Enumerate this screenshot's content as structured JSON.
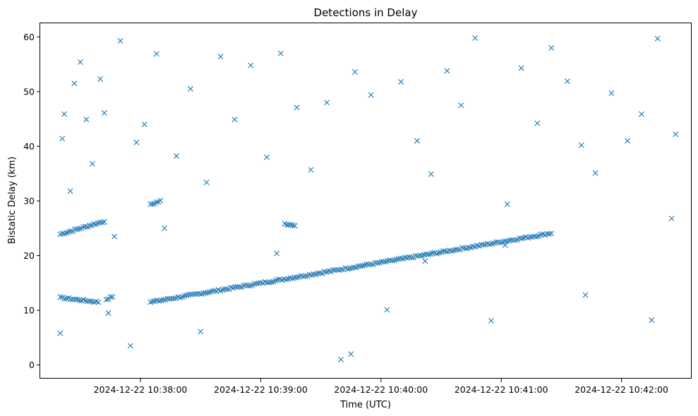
{
  "chart_data": {
    "type": "scatter",
    "title": "Detections in Delay",
    "xlabel": "Time (UTC)",
    "ylabel": "Bistatic Delay (km)",
    "x_tick_labels": [
      "2024-12-22 10:38:00",
      "2024-12-22 10:39:00",
      "2024-12-22 10:40:00",
      "2024-12-22 10:41:00",
      "2024-12-22 10:42:00"
    ],
    "y_tick_labels": [
      "0",
      "10",
      "20",
      "30",
      "40",
      "50",
      "60"
    ],
    "xlim": [
      "2024-12-22 10:37:10",
      "2024-12-22 10:42:35"
    ],
    "ylim": [
      -2.5,
      62.5
    ],
    "grid": false,
    "marker": "x",
    "color": "#1f77b4",
    "tracks": [
      {
        "t_start": "2024-12-22 10:37:20",
        "t_end": "2024-12-22 10:37:42",
        "delay_start": 23.9,
        "delay_end": 26.3
      },
      {
        "t_start": "2024-12-22 10:37:20",
        "t_end": "2024-12-22 10:37:39",
        "delay_start": 12.3,
        "delay_end": 11.5
      },
      {
        "t_start": "2024-12-22 10:37:43",
        "t_end": "2024-12-22 10:37:46",
        "delay_start": 12.0,
        "delay_end": 12.5
      },
      {
        "t_start": "2024-12-22 10:38:05",
        "t_end": "2024-12-22 10:38:10",
        "delay_start": 29.3,
        "delay_end": 30.0
      },
      {
        "t_start": "2024-12-22 10:39:12",
        "t_end": "2024-12-22 10:39:17",
        "delay_start": 25.8,
        "delay_end": 25.6
      },
      {
        "t_start": "2024-12-22 10:38:05",
        "t_end": "2024-12-22 10:41:25",
        "delay_start": 11.5,
        "delay_end": 24.1
      }
    ],
    "x": [
      "10:37:20",
      "10:37:21",
      "10:37:22",
      "10:37:25",
      "10:37:27",
      "10:37:30",
      "10:37:33",
      "10:37:36",
      "10:37:40",
      "10:37:42",
      "10:37:44",
      "10:37:47",
      "10:37:50",
      "10:37:55",
      "10:37:58",
      "10:38:02",
      "10:38:08",
      "10:38:12",
      "10:38:18",
      "10:38:25",
      "10:38:33",
      "10:38:40",
      "10:38:47",
      "10:38:55",
      "10:39:03",
      "10:39:10",
      "10:39:18",
      "10:39:25",
      "10:39:33",
      "10:39:40",
      "10:39:47",
      "10:39:55",
      "10:40:03",
      "10:40:10",
      "10:40:18",
      "10:40:25",
      "10:40:33",
      "10:40:40",
      "10:40:47",
      "10:40:55",
      "10:41:03",
      "10:41:10",
      "10:41:18",
      "10:41:25",
      "10:41:33",
      "10:41:40",
      "10:41:47",
      "10:41:55",
      "10:42:03",
      "10:42:10",
      "10:42:18",
      "10:42:25",
      "10:42:27",
      "10:38:30",
      "10:39:08",
      "10:39:45",
      "10:40:22",
      "10:41:02",
      "10:41:42",
      "10:42:15"
    ],
    "delay": [
      5.8,
      41.4,
      45.9,
      31.8,
      51.5,
      55.4,
      44.9,
      36.8,
      52.3,
      46.1,
      9.5,
      23.5,
      59.3,
      3.5,
      40.7,
      44.0,
      56.9,
      25.0,
      38.2,
      50.5,
      33.4,
      56.4,
      44.9,
      54.8,
      38.0,
      57.0,
      47.1,
      35.7,
      48.0,
      1.0,
      53.6,
      49.4,
      10.1,
      51.8,
      41.0,
      34.9,
      53.8,
      47.5,
      59.8,
      8.1,
      29.4,
      54.3,
      44.2,
      58.0,
      51.9,
      40.2,
      35.1,
      49.7,
      41.0,
      45.9,
      59.7,
      26.8,
      42.2,
      6.1,
      20.4,
      2.0,
      19.0,
      21.9,
      12.8,
      8.2
    ]
  }
}
